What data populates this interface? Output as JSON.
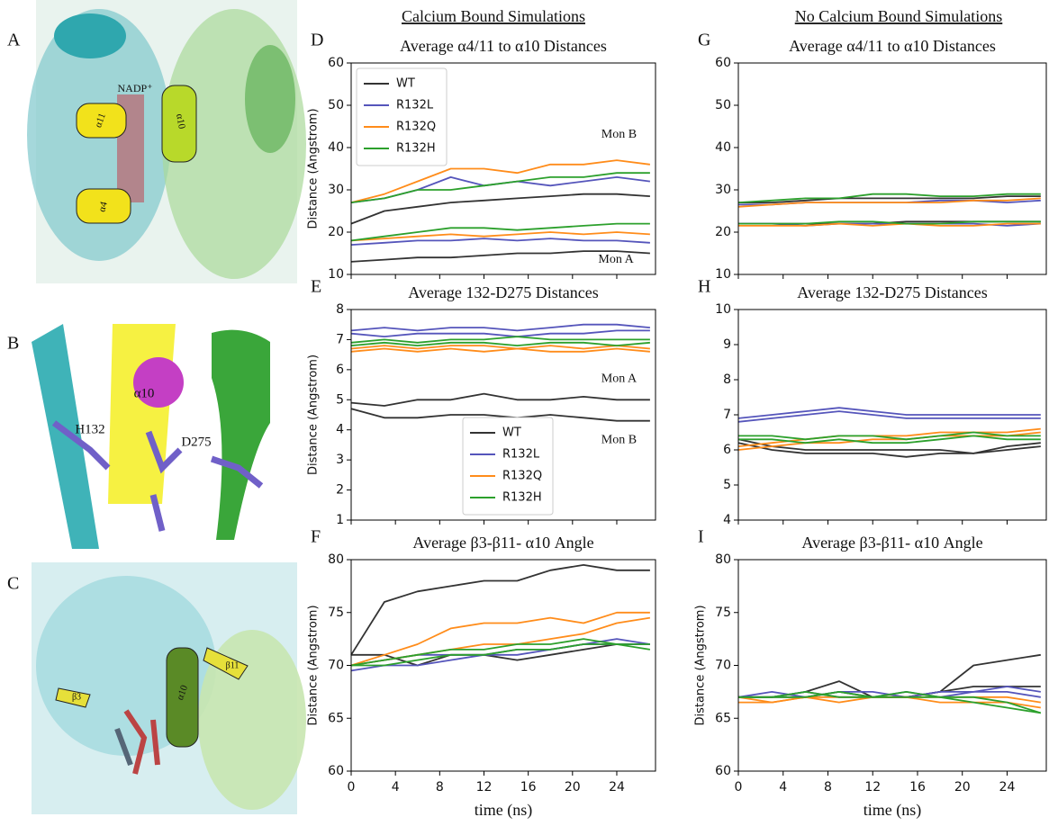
{
  "column_titles": [
    "Calcium Bound Simulations",
    "No Calcium Bound Simulations"
  ],
  "image_panels": [
    {
      "letter": "A",
      "labels": [
        "NADP⁺",
        "α11",
        "α10",
        "α4"
      ]
    },
    {
      "letter": "B",
      "labels": [
        "α10",
        "H132",
        "D275"
      ]
    },
    {
      "letter": "C",
      "labels": [
        "β3",
        "α10",
        "β11"
      ]
    }
  ],
  "chart_data": [
    {
      "type": "line",
      "letter": "D",
      "title": "Average α4/11 to α10 Distances",
      "ylabel": "Distance (Angstrom)",
      "x": [
        0,
        3,
        6,
        9,
        12,
        15,
        18,
        21,
        24,
        27
      ],
      "xlim": [
        0,
        27.5
      ],
      "xticks": [
        0,
        4,
        8,
        12,
        16,
        20,
        24
      ],
      "show_xticklabels": false,
      "ylim": [
        10,
        60
      ],
      "yticks": [
        10,
        20,
        30,
        40,
        50,
        60
      ],
      "legend": "upper left",
      "annotations": [
        "Mon B",
        "Mon A"
      ],
      "series": [
        {
          "name": "WT",
          "color": "#333333",
          "lines": [
            [
              22,
              25,
              26,
              27,
              27.5,
              28,
              28.5,
              29,
              29,
              28.5
            ],
            [
              13,
              13.5,
              14,
              14,
              14.5,
              15,
              15,
              15.5,
              15.5,
              15
            ]
          ]
        },
        {
          "name": "R132L",
          "color": "#5555bb",
          "lines": [
            [
              27,
              28,
              30,
              33,
              31,
              32,
              31,
              32,
              33,
              32
            ],
            [
              17,
              17.5,
              18,
              18,
              18.5,
              18,
              18.5,
              18,
              18,
              17.5
            ]
          ]
        },
        {
          "name": "R132Q",
          "color": "#ff8c1a",
          "lines": [
            [
              27,
              29,
              32,
              35,
              35,
              34,
              36,
              36,
              37,
              36
            ],
            [
              18,
              18.5,
              19,
              19.5,
              19,
              19.5,
              20,
              19.5,
              20,
              19.5
            ]
          ]
        },
        {
          "name": "R132H",
          "color": "#2ca02c",
          "lines": [
            [
              27,
              28,
              30,
              30,
              31,
              32,
              33,
              33,
              34,
              34
            ],
            [
              18,
              19,
              20,
              21,
              21,
              20.5,
              21,
              21.5,
              22,
              22
            ]
          ]
        }
      ]
    },
    {
      "type": "line",
      "letter": "E",
      "title": "Average 132-D275 Distances",
      "ylabel": "Distance (Angstrom)",
      "x": [
        0,
        3,
        6,
        9,
        12,
        15,
        18,
        21,
        24,
        27
      ],
      "xlim": [
        0,
        27.5
      ],
      "xticks": [
        0,
        4,
        8,
        12,
        16,
        20,
        24
      ],
      "show_xticklabels": false,
      "ylim": [
        1,
        8
      ],
      "yticks": [
        1,
        2,
        3,
        4,
        5,
        6,
        7,
        8
      ],
      "legend": "lower center",
      "annotations": [
        "Mon A",
        "Mon B"
      ],
      "series": [
        {
          "name": "WT",
          "color": "#333333",
          "lines": [
            [
              4.9,
              4.8,
              5.0,
              5.0,
              5.2,
              5.0,
              5.0,
              5.1,
              5.0,
              5.0
            ],
            [
              4.7,
              4.4,
              4.4,
              4.5,
              4.5,
              4.4,
              4.5,
              4.4,
              4.3,
              4.3
            ]
          ]
        },
        {
          "name": "R132L",
          "color": "#5555bb",
          "lines": [
            [
              7.3,
              7.4,
              7.3,
              7.4,
              7.4,
              7.3,
              7.4,
              7.5,
              7.5,
              7.4
            ],
            [
              7.2,
              7.1,
              7.2,
              7.2,
              7.2,
              7.1,
              7.2,
              7.2,
              7.3,
              7.3
            ]
          ]
        },
        {
          "name": "R132Q",
          "color": "#ff8c1a",
          "lines": [
            [
              6.7,
              6.8,
              6.7,
              6.8,
              6.8,
              6.7,
              6.8,
              6.7,
              6.8,
              6.7
            ],
            [
              6.6,
              6.7,
              6.6,
              6.7,
              6.6,
              6.7,
              6.6,
              6.6,
              6.7,
              6.6
            ]
          ]
        },
        {
          "name": "R132H",
          "color": "#2ca02c",
          "lines": [
            [
              6.9,
              7.0,
              6.9,
              7.0,
              7.0,
              7.1,
              7.0,
              7.0,
              7.0,
              7.0
            ],
            [
              6.8,
              6.9,
              6.8,
              6.9,
              6.9,
              6.8,
              6.9,
              6.9,
              6.8,
              6.9
            ]
          ]
        }
      ]
    },
    {
      "type": "line",
      "letter": "F",
      "title": "Average β3-β11- α10 Angle",
      "ylabel": "Distance (Angstrom)",
      "xlabel": "time (ns)",
      "x": [
        0,
        3,
        6,
        9,
        12,
        15,
        18,
        21,
        24,
        27
      ],
      "xlim": [
        0,
        27.5
      ],
      "xticks": [
        0,
        4,
        8,
        12,
        16,
        20,
        24
      ],
      "show_xticklabels": true,
      "ylim": [
        60,
        80
      ],
      "yticks": [
        60,
        65,
        70,
        75,
        80
      ],
      "series": [
        {
          "color": "#333333",
          "lines": [
            [
              71,
              76,
              77,
              77.5,
              78,
              78,
              79,
              79.5,
              79,
              79
            ],
            [
              71,
              71,
              70,
              71,
              71,
              70.5,
              71,
              71.5,
              72,
              72
            ]
          ]
        },
        {
          "color": "#5555bb",
          "lines": [
            [
              70,
              70.5,
              71,
              71,
              71,
              71.5,
              71.5,
              72,
              72,
              72
            ],
            [
              69.5,
              70,
              70,
              70.5,
              71,
              71,
              71.5,
              72,
              72.5,
              72
            ]
          ]
        },
        {
          "color": "#ff8c1a",
          "lines": [
            [
              70,
              71,
              72,
              73.5,
              74,
              74,
              74.5,
              74,
              75,
              75
            ],
            [
              70,
              70.5,
              71,
              71.5,
              72,
              72,
              72.5,
              73,
              74,
              74.5
            ]
          ]
        },
        {
          "color": "#2ca02c",
          "lines": [
            [
              70,
              70.5,
              71,
              71.5,
              71.5,
              72,
              72,
              72.5,
              72,
              72
            ],
            [
              70,
              70,
              70.5,
              71,
              71,
              71.5,
              71.5,
              72,
              72,
              71.5
            ]
          ]
        }
      ]
    },
    {
      "type": "line",
      "letter": "G",
      "title": "Average α4/11 to α10 Distances",
      "x": [
        0,
        3,
        6,
        9,
        12,
        15,
        18,
        21,
        24,
        27
      ],
      "xlim": [
        0,
        27.5
      ],
      "xticks": [
        0,
        4,
        8,
        12,
        16,
        20,
        24
      ],
      "show_xticklabels": false,
      "ylim": [
        10,
        60
      ],
      "yticks": [
        10,
        20,
        30,
        40,
        50,
        60
      ],
      "series": [
        {
          "color": "#333333",
          "lines": [
            [
              27,
              27,
              27.5,
              28,
              28,
              28,
              28,
              28,
              28.5,
              28.5
            ],
            [
              22,
              22,
              22,
              22,
              22,
              22.5,
              22.5,
              22.5,
              22.5,
              22.5
            ]
          ]
        },
        {
          "color": "#5555bb",
          "lines": [
            [
              26.5,
              26.5,
              27,
              27,
              27,
              27,
              27.5,
              27.5,
              27,
              27.5
            ],
            [
              22,
              22,
              21.5,
              22,
              22,
              22,
              22,
              22,
              21.5,
              22
            ]
          ]
        },
        {
          "color": "#ff8c1a",
          "lines": [
            [
              26,
              26.5,
              27,
              27,
              27,
              27,
              27,
              27.5,
              27.5,
              28
            ],
            [
              21.5,
              21.5,
              21.5,
              22,
              21.5,
              22,
              21.5,
              21.5,
              22,
              22
            ]
          ]
        },
        {
          "color": "#2ca02c",
          "lines": [
            [
              27,
              27.5,
              28,
              28,
              29,
              29,
              28.5,
              28.5,
              29,
              29
            ],
            [
              22,
              22,
              22,
              22.5,
              22.5,
              22,
              22,
              22.5,
              22.5,
              22.5
            ]
          ]
        }
      ]
    },
    {
      "type": "line",
      "letter": "H",
      "title": "Average 132-D275 Distances",
      "x": [
        0,
        3,
        6,
        9,
        12,
        15,
        18,
        21,
        24,
        27
      ],
      "xlim": [
        0,
        27.5
      ],
      "xticks": [
        0,
        4,
        8,
        12,
        16,
        20,
        24
      ],
      "show_xticklabels": false,
      "ylim": [
        4,
        10
      ],
      "yticks": [
        4,
        5,
        6,
        7,
        8,
        9,
        10
      ],
      "series": [
        {
          "color": "#333333",
          "lines": [
            [
              6.2,
              6.0,
              5.9,
              5.9,
              5.9,
              5.8,
              5.9,
              5.9,
              6.0,
              6.1
            ],
            [
              6.3,
              6.1,
              6.0,
              6.0,
              6.0,
              6.0,
              6.0,
              5.9,
              6.1,
              6.2
            ]
          ]
        },
        {
          "color": "#5555bb",
          "lines": [
            [
              6.9,
              7.0,
              7.1,
              7.2,
              7.1,
              7.0,
              7.0,
              7.0,
              7.0,
              7.0
            ],
            [
              6.8,
              6.9,
              7.0,
              7.1,
              7.0,
              6.9,
              6.9,
              6.9,
              6.9,
              6.9
            ]
          ]
        },
        {
          "color": "#ff8c1a",
          "lines": [
            [
              6.1,
              6.2,
              6.3,
              6.4,
              6.4,
              6.4,
              6.5,
              6.5,
              6.5,
              6.6
            ],
            [
              6.0,
              6.1,
              6.2,
              6.2,
              6.3,
              6.3,
              6.4,
              6.4,
              6.4,
              6.5
            ]
          ]
        },
        {
          "color": "#2ca02c",
          "lines": [
            [
              6.3,
              6.3,
              6.2,
              6.3,
              6.2,
              6.2,
              6.3,
              6.4,
              6.3,
              6.3
            ],
            [
              6.4,
              6.4,
              6.3,
              6.4,
              6.4,
              6.3,
              6.4,
              6.5,
              6.4,
              6.4
            ]
          ]
        }
      ]
    },
    {
      "type": "line",
      "letter": "I",
      "title": "Average β3-β11- α10 Angle",
      "ylabel": "Distance (Angstrom)",
      "xlabel": "time (ns)",
      "x": [
        0,
        3,
        6,
        9,
        12,
        15,
        18,
        21,
        24,
        27
      ],
      "xlim": [
        0,
        27.5
      ],
      "xticks": [
        0,
        4,
        8,
        12,
        16,
        20,
        24
      ],
      "show_xticklabels": true,
      "ylim": [
        60,
        80
      ],
      "yticks": [
        60,
        65,
        70,
        75,
        80
      ],
      "series": [
        {
          "color": "#333333",
          "lines": [
            [
              67,
              67,
              67.5,
              68.5,
              67,
              67,
              67.5,
              70,
              70.5,
              71
            ],
            [
              67,
              67,
              67,
              67.5,
              67,
              67,
              67.5,
              68,
              68,
              68
            ]
          ]
        },
        {
          "color": "#5555bb",
          "lines": [
            [
              67,
              67.5,
              67,
              67.5,
              67.5,
              67,
              67.5,
              67.5,
              68,
              67.5
            ],
            [
              67,
              67,
              67.5,
              67,
              67,
              67.5,
              67,
              67.5,
              67.5,
              67
            ]
          ]
        },
        {
          "color": "#ff8c1a",
          "lines": [
            [
              67,
              66.5,
              67,
              67,
              67,
              67,
              67,
              67,
              67,
              66.5
            ],
            [
              66.5,
              66.5,
              67,
              66.5,
              67,
              67,
              66.5,
              66.5,
              66.5,
              66
            ]
          ]
        },
        {
          "color": "#2ca02c",
          "lines": [
            [
              67,
              67,
              67.5,
              67,
              67,
              67.5,
              67,
              67,
              66.5,
              65.5
            ],
            [
              67,
              67,
              67,
              67.5,
              67,
              67,
              67,
              66.5,
              66,
              65.5
            ]
          ]
        }
      ]
    }
  ]
}
